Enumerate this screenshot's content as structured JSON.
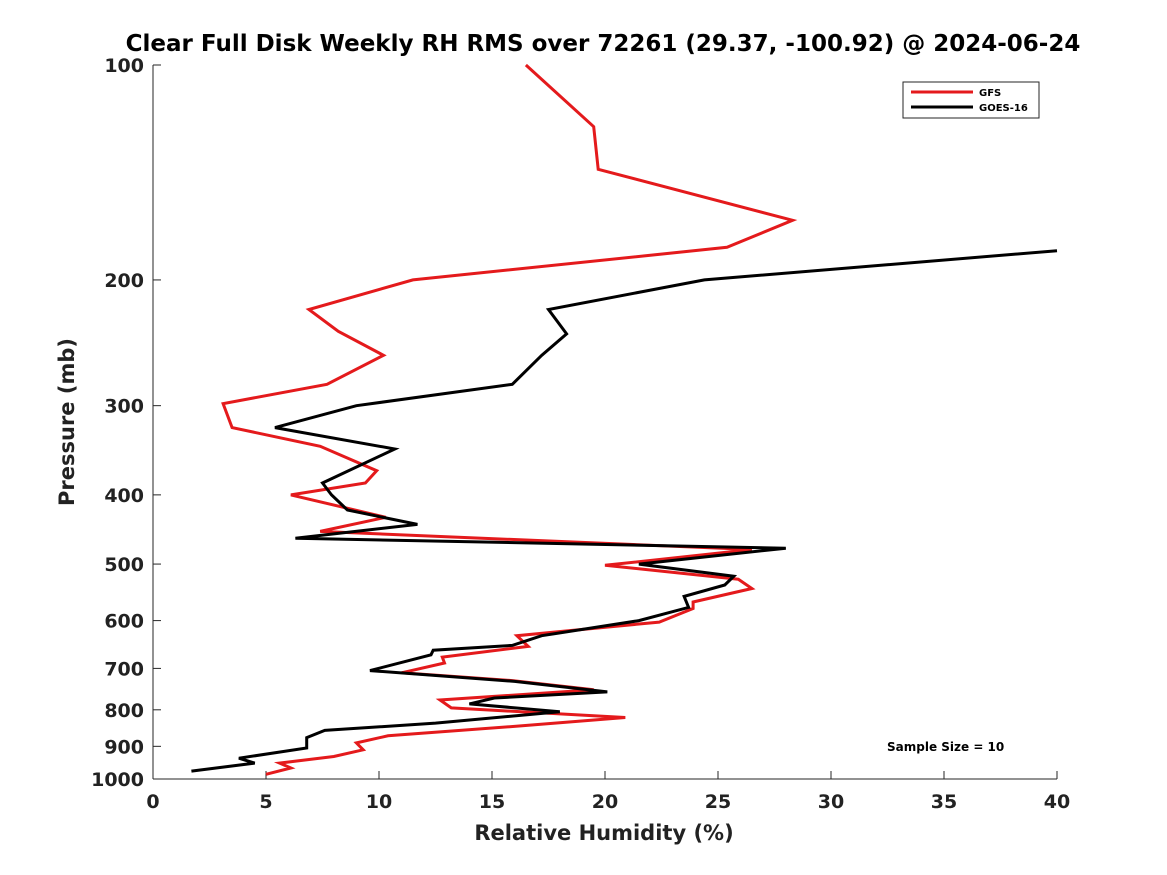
{
  "chart_data": {
    "type": "line",
    "title": "Clear Full Disk Weekly RH RMS over 72261 (29.37, -100.92) @ 2024-06-24",
    "xlabel": "Relative Humidity (%)",
    "ylabel": "Pressure (mb)",
    "xlim": [
      0,
      40
    ],
    "ylim": [
      100,
      1000
    ],
    "y_scale": "log",
    "y_reversed": true,
    "xticks": [
      0,
      5,
      10,
      15,
      20,
      25,
      30,
      35,
      40
    ],
    "yticks": [
      100,
      200,
      300,
      400,
      500,
      600,
      700,
      800,
      900,
      1000
    ],
    "grid": false,
    "legend_position": "top-right",
    "annotation": "Sample Size = 10",
    "series": [
      {
        "name": "GFS",
        "color": "#e41a1c",
        "x": [
          16.5,
          19.5,
          19.7,
          28.3,
          25.4,
          11.5,
          6.9,
          8.2,
          10.2,
          7.7,
          3.1,
          3.5,
          7.4,
          9.9,
          9.4,
          6.1,
          10.3,
          7.4,
          26.5,
          20.0,
          25.9,
          26.5,
          23.9,
          23.9,
          22.4,
          16.1,
          16.6,
          12.8,
          12.9,
          11.0,
          15.9,
          19.5,
          12.7,
          13.2,
          20.9,
          16.2,
          10.4,
          9.0,
          9.3,
          8.0,
          5.6,
          6.1,
          5.0
        ],
        "y": [
          100,
          122,
          140,
          165,
          180,
          200,
          220,
          236,
          255,
          280,
          298,
          322,
          342,
          370,
          385,
          400,
          430,
          450,
          477,
          502,
          525,
          541,
          565,
          577,
          603,
          630,
          652,
          675,
          688,
          710,
          728,
          750,
          775,
          795,
          820,
          843,
          870,
          890,
          910,
          930,
          950,
          965,
          985
        ]
      },
      {
        "name": "GOES-16",
        "color": "#000000",
        "x": [
          40.0,
          24.4,
          17.5,
          18.3,
          17.2,
          15.9,
          9.0,
          5.4,
          10.7,
          7.5,
          7.9,
          8.6,
          11.7,
          6.3,
          28.0,
          21.5,
          25.7,
          25.3,
          23.5,
          23.7,
          21.5,
          17.2,
          15.9,
          12.4,
          12.3,
          9.6,
          16.0,
          20.1,
          15.1,
          14.0,
          18.0,
          12.5,
          7.6,
          6.8,
          6.8,
          3.8,
          4.5,
          1.7
        ],
        "y": [
          182,
          200,
          220,
          238,
          255,
          280,
          300,
          322,
          345,
          385,
          400,
          420,
          440,
          460,
          475,
          500,
          520,
          535,
          555,
          575,
          600,
          630,
          650,
          660,
          670,
          705,
          730,
          755,
          770,
          785,
          805,
          835,
          855,
          875,
          905,
          935,
          950,
          975
        ]
      }
    ]
  }
}
